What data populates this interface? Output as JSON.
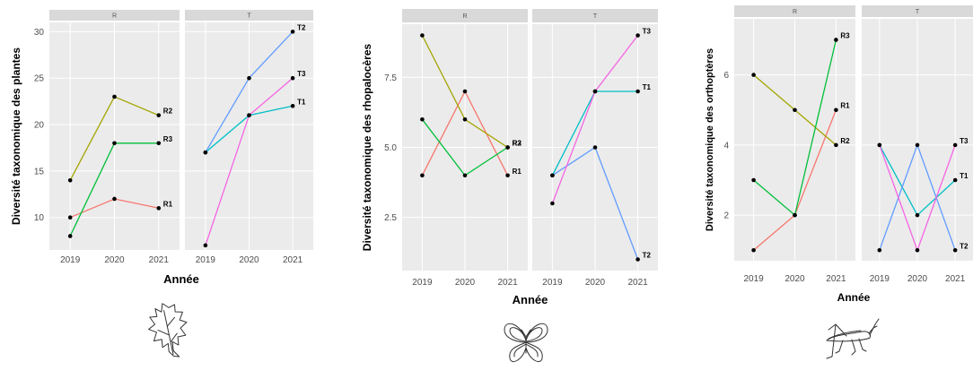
{
  "colors": {
    "R1": "#F8766D",
    "R2": "#A3A500",
    "R3": "#00BF39",
    "T1": "#00BFC4",
    "T2": "#619CFF",
    "T3": "#F564E3",
    "panel_bg": "#EBEBEB",
    "strip_bg": "#D9D9D9"
  },
  "chart_data": [
    {
      "type": "line",
      "title": "",
      "xlabel": "Année",
      "ylabel": "Diversité taxonomique des plantes",
      "x": [
        "2019",
        "2020",
        "2021"
      ],
      "ylim": [
        6.5,
        31
      ],
      "yticks": [
        "10",
        "15",
        "20",
        "25",
        "30"
      ],
      "facets": [
        {
          "strip": "R",
          "series": [
            {
              "name": "R1",
              "values": [
                10,
                12,
                11
              ]
            },
            {
              "name": "R2",
              "values": [
                14,
                23,
                21
              ]
            },
            {
              "name": "R3",
              "values": [
                8,
                18,
                18
              ]
            }
          ]
        },
        {
          "strip": "T",
          "series": [
            {
              "name": "T1",
              "values": [
                17,
                21,
                22
              ]
            },
            {
              "name": "T2",
              "values": [
                17,
                25,
                30
              ]
            },
            {
              "name": "T3",
              "values": [
                7,
                21,
                25
              ]
            }
          ]
        }
      ],
      "icon": "oak-leaf-icon"
    },
    {
      "type": "line",
      "title": "",
      "xlabel": "Année",
      "ylabel": "Diversité taxonomique des rhopalocères",
      "x": [
        "2019",
        "2020",
        "2021"
      ],
      "ylim": [
        0.6,
        9.4
      ],
      "yticks": [
        "2.5",
        "5.0",
        "7.5"
      ],
      "facets": [
        {
          "strip": "R",
          "series": [
            {
              "name": "R1",
              "values": [
                4,
                7,
                4
              ]
            },
            {
              "name": "R2",
              "values": [
                9,
                6,
                5
              ]
            },
            {
              "name": "R3",
              "values": [
                6,
                4,
                5
              ]
            }
          ]
        },
        {
          "strip": "T",
          "series": [
            {
              "name": "T1",
              "values": [
                4,
                7,
                7
              ]
            },
            {
              "name": "T2",
              "values": [
                4,
                5,
                1
              ]
            },
            {
              "name": "T3",
              "values": [
                3,
                7,
                9
              ]
            }
          ]
        }
      ],
      "icon": "butterfly-icon"
    },
    {
      "type": "line",
      "title": "",
      "xlabel": "Année",
      "ylabel": "Diversité taxonomique des orthoptères",
      "x": [
        "2019",
        "2020",
        "2021"
      ],
      "ylim": [
        0.7,
        7.6
      ],
      "yticks": [
        "2",
        "4",
        "6"
      ],
      "facets": [
        {
          "strip": "R",
          "series": [
            {
              "name": "R1",
              "values": [
                1,
                2,
                5
              ]
            },
            {
              "name": "R2",
              "values": [
                6,
                5,
                4
              ]
            },
            {
              "name": "R3",
              "values": [
                3,
                2,
                7
              ]
            }
          ]
        },
        {
          "strip": "T",
          "series": [
            {
              "name": "T1",
              "values": [
                4,
                2,
                3
              ]
            },
            {
              "name": "T2",
              "values": [
                1,
                4,
                1
              ]
            },
            {
              "name": "T3",
              "values": [
                4,
                1,
                4
              ]
            }
          ]
        }
      ],
      "icon": "grasshopper-icon"
    }
  ]
}
